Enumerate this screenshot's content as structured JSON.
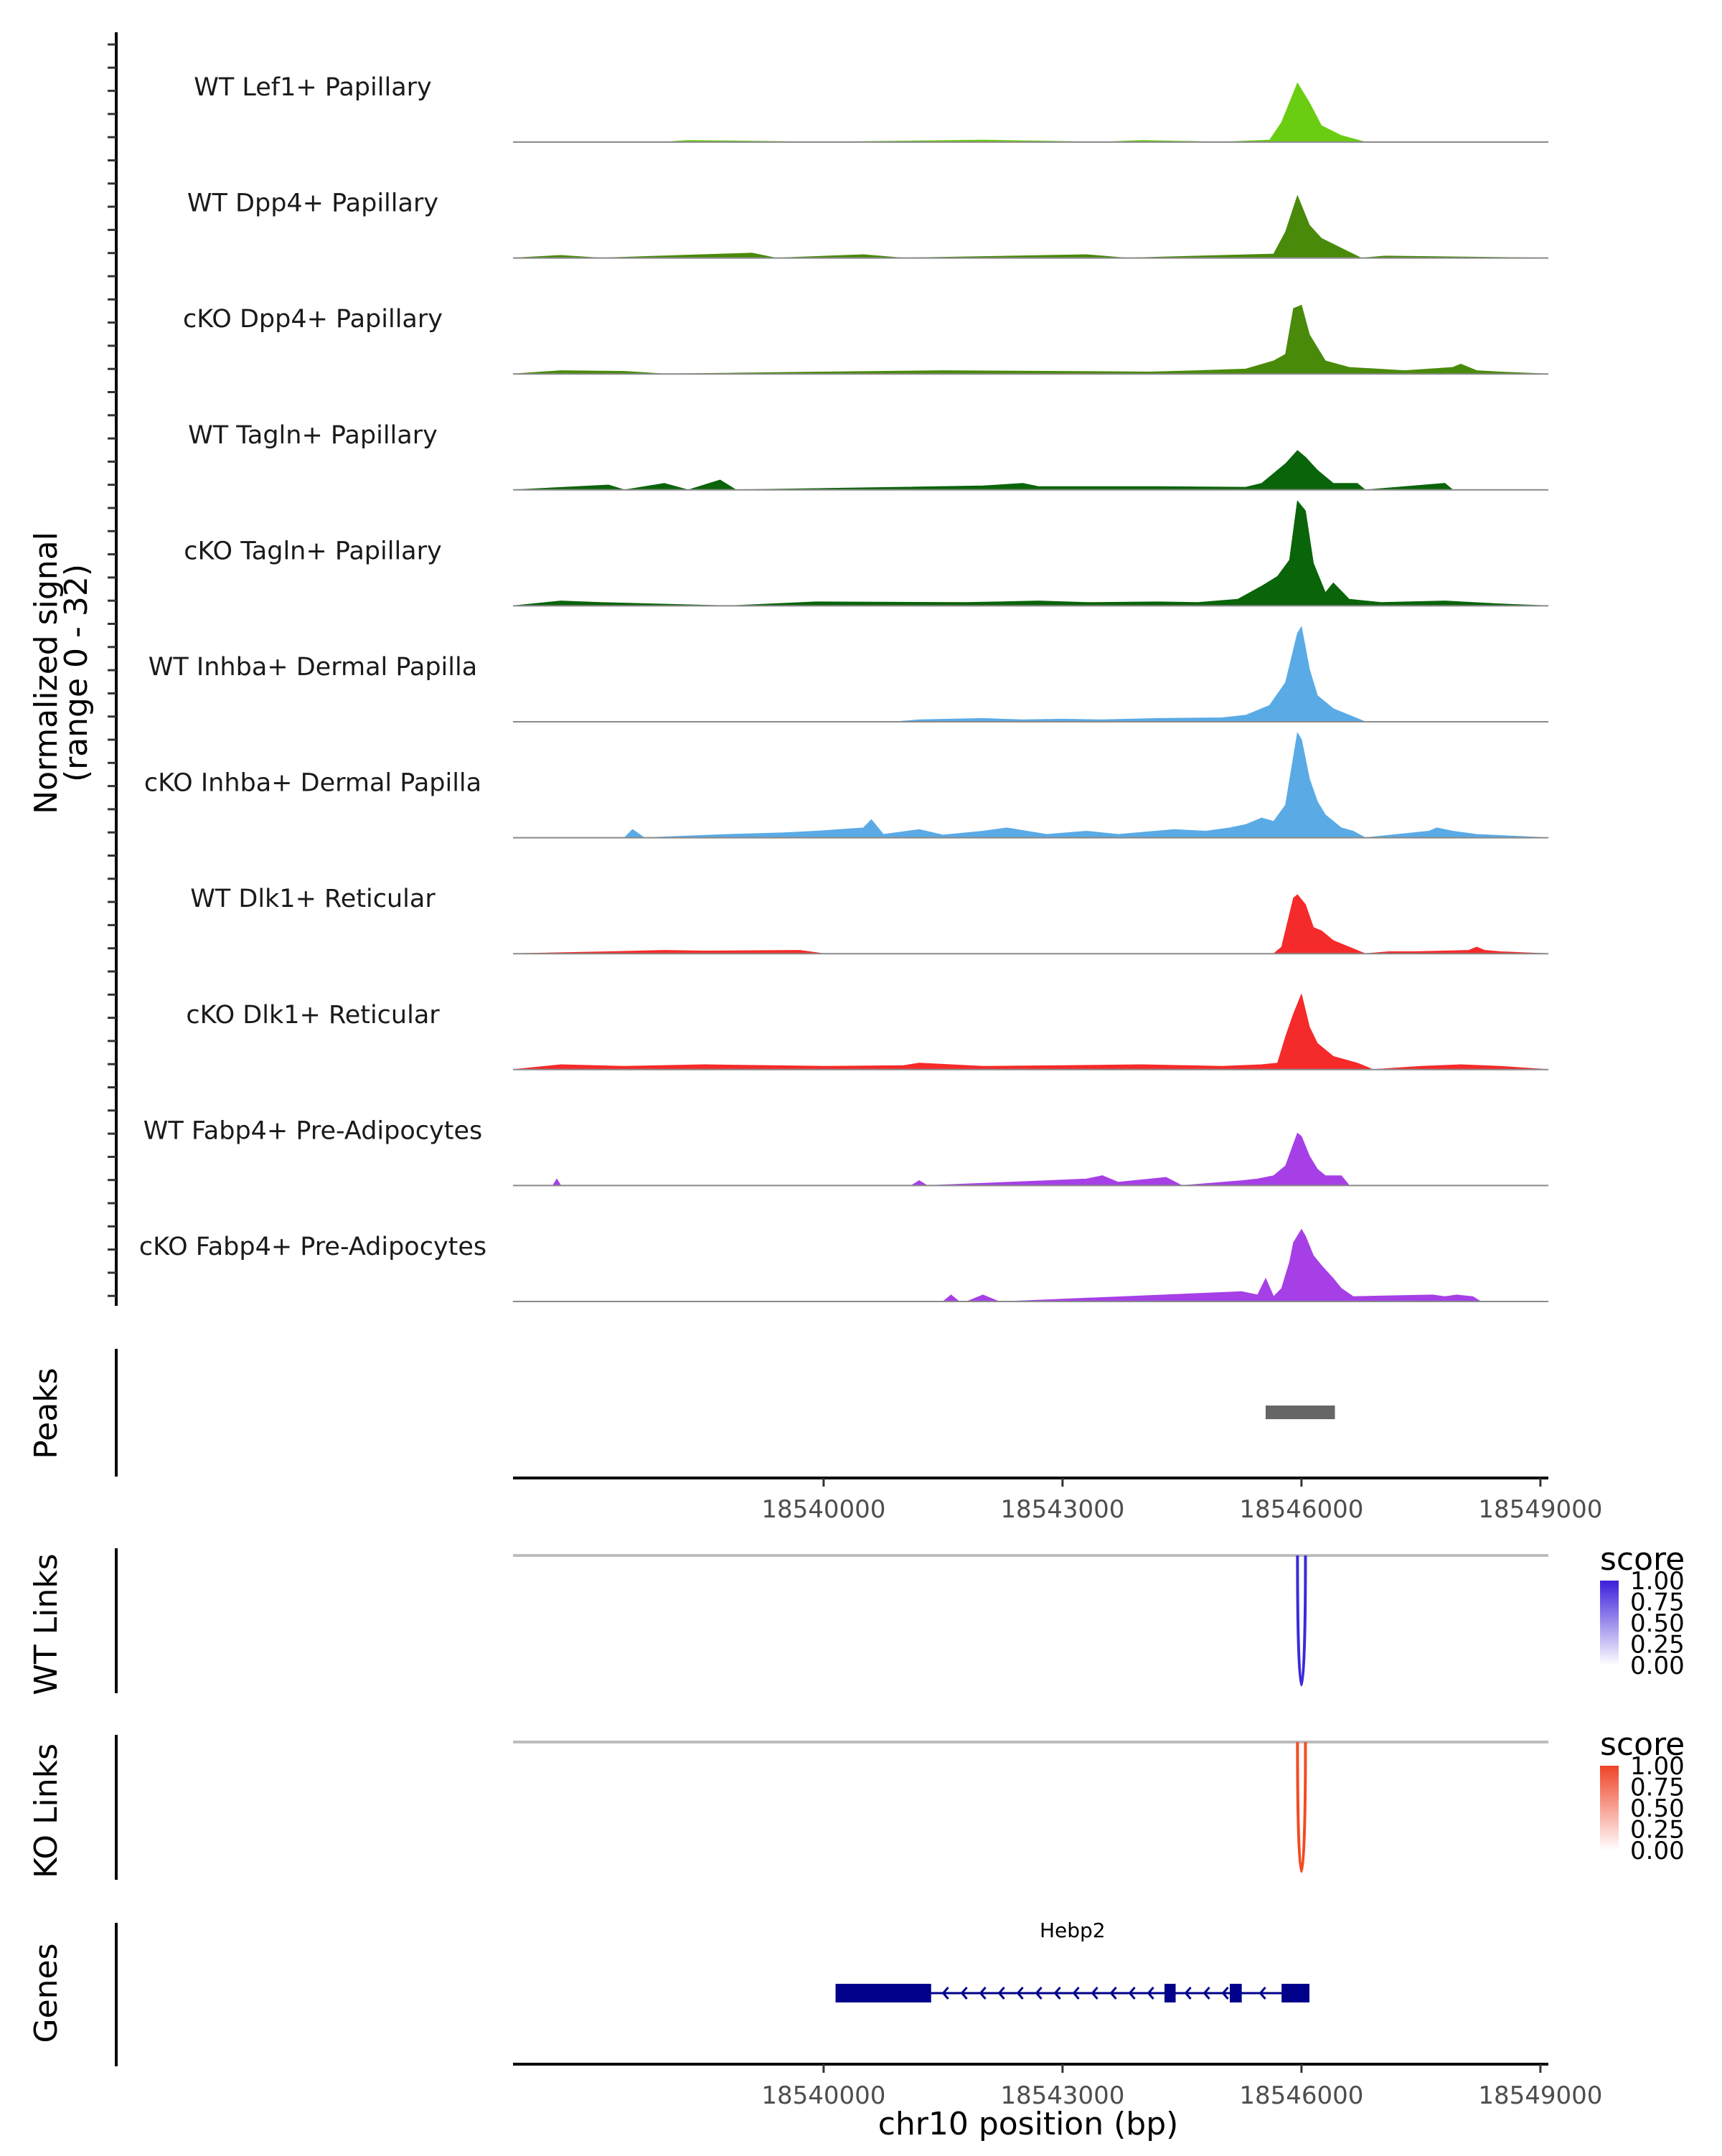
{
  "chart_data": {
    "type": "area",
    "title": "",
    "xlabel": "chr10 position (bp)",
    "ylabel": "Normalized signal",
    "ylabel_range": "(range 0 - 32)",
    "xlim": [
      18536100,
      18549100
    ],
    "ylim": [
      0,
      32
    ],
    "x_ticks": [
      18540000,
      18543000,
      18546000,
      18549000
    ],
    "tracks": [
      {
        "name": "WT Lef1+ Papillary",
        "color": "#6acd12",
        "x": [
          18536100,
          18538000,
          18538300,
          18540000,
          18542000,
          18543500,
          18544000,
          18545000,
          18545600,
          18545750,
          18545900,
          18545950,
          18546000,
          18546100,
          18546250,
          18546500,
          18546800,
          18549100
        ],
        "y": [
          0,
          0,
          0.5,
          0,
          0.6,
          0,
          0.5,
          0,
          0.6,
          6,
          15,
          18,
          16,
          12,
          5,
          2,
          0,
          0
        ]
      },
      {
        "name": "WT Dpp4+ Papillary",
        "color": "#4a8a0a",
        "x": [
          18536100,
          18536700,
          18537200,
          18539100,
          18539400,
          18540500,
          18541000,
          18543300,
          18543800,
          18545650,
          18545800,
          18545950,
          18546000,
          18546100,
          18546250,
          18546500,
          18546750,
          18547050,
          18549100
        ],
        "y": [
          0,
          0.8,
          0,
          1.5,
          0,
          1,
          0,
          1,
          0,
          1.2,
          8,
          19,
          16,
          10,
          6,
          3,
          0,
          0.6,
          0
        ]
      },
      {
        "name": "cKO Dpp4+ Papillary",
        "color": "#4a8a0a",
        "x": [
          18536100,
          18536700,
          18537500,
          18538000,
          18540000,
          18541500,
          18543000,
          18544100,
          18544700,
          18545300,
          18545650,
          18545800,
          18545900,
          18546000,
          18546100,
          18546300,
          18546600,
          18547300,
          18547900,
          18548000,
          18548200,
          18548500,
          18549100
        ],
        "y": [
          0,
          1,
          0.8,
          0,
          0.6,
          1,
          0.8,
          0.6,
          1,
          1.5,
          4,
          6,
          20,
          21,
          12,
          4,
          2,
          1,
          2,
          3,
          1,
          0.6,
          0
        ]
      },
      {
        "name": "WT Tagln+ Papillary",
        "color": "#0a640a",
        "x": [
          18536100,
          18537300,
          18537500,
          18538000,
          18538300,
          18538700,
          18538900,
          18542000,
          18542500,
          18542700,
          18544200,
          18545300,
          18545500,
          18545800,
          18545950,
          18546050,
          18546200,
          18546400,
          18546700,
          18546800,
          18547800,
          18547900,
          18549100
        ],
        "y": [
          0,
          1.5,
          0,
          2,
          0,
          3,
          0,
          1.2,
          2,
          1,
          1,
          0.8,
          2,
          8,
          12,
          10,
          6,
          2,
          2,
          0,
          2,
          0,
          0
        ]
      },
      {
        "name": "cKO Tagln+ Papillary",
        "color": "#0a640a",
        "x": [
          18536100,
          18536700,
          18537200,
          18538800,
          18539900,
          18541800,
          18542700,
          18543300,
          18544200,
          18544700,
          18545200,
          18545500,
          18545700,
          18545850,
          18545950,
          18546050,
          18546150,
          18546300,
          18546400,
          18546600,
          18547000,
          18547800,
          18548500,
          18549100
        ],
        "y": [
          0,
          1.5,
          1,
          0,
          1.2,
          1,
          1.5,
          1,
          1.2,
          1,
          2,
          6,
          9,
          14,
          32,
          29,
          13,
          4,
          7,
          2,
          1,
          1.5,
          0.6,
          0
        ]
      },
      {
        "name": "WT Inhba+ Dermal Papilla",
        "color": "#5aaae6",
        "x": [
          18536100,
          18540900,
          18541200,
          18542000,
          18542500,
          18543000,
          18543500,
          18544200,
          18545000,
          18545300,
          18545600,
          18545800,
          18545950,
          18546000,
          18546100,
          18546200,
          18546400,
          18546600,
          18546800,
          18549100
        ],
        "y": [
          0,
          0,
          0.6,
          1,
          0.6,
          0.8,
          0.6,
          1,
          1.2,
          2,
          5,
          12,
          27,
          29,
          16,
          8,
          4,
          2,
          0,
          0
        ]
      },
      {
        "name": "cKO Inhba+ Dermal Papilla",
        "color": "#5aaae6",
        "x": [
          18536100,
          18537500,
          18537600,
          18537750,
          18538800,
          18539500,
          18539900,
          18540500,
          18540600,
          18540750,
          18541200,
          18541500,
          18542000,
          18542300,
          18542800,
          18543300,
          18543700,
          18544400,
          18544800,
          18545100,
          18545300,
          18545500,
          18545650,
          18545800,
          18545950,
          18546000,
          18546100,
          18546200,
          18546300,
          18546500,
          18546650,
          18546800,
          18547600,
          18547700,
          18547900,
          18548200,
          18549100
        ],
        "y": [
          0,
          0,
          2.5,
          0,
          1,
          1.5,
          2,
          3,
          5.5,
          1,
          2.5,
          0.8,
          2,
          3,
          1,
          2,
          1,
          2.5,
          2,
          3,
          4,
          6,
          5,
          10,
          32,
          30,
          18,
          11,
          7,
          3,
          2,
          0,
          2,
          3,
          2,
          1,
          0
        ]
      },
      {
        "name": "WT Dlk1+ Reticular",
        "color": "#f52a2a",
        "x": [
          18536100,
          18537300,
          18538000,
          18538500,
          18539700,
          18540000,
          18545650,
          18545750,
          18545900,
          18545950,
          18546050,
          18546150,
          18546250,
          18546400,
          18546600,
          18546800,
          18547100,
          18547400,
          18548100,
          18548200,
          18548300,
          18548500,
          18549100
        ],
        "y": [
          0,
          0.6,
          1,
          0.8,
          1,
          0,
          0,
          2,
          17,
          18,
          15,
          8,
          7,
          4,
          2,
          0,
          0.6,
          0.6,
          1,
          2,
          1,
          0.6,
          0
        ]
      },
      {
        "name": "cKO Dlk1+ Reticular",
        "color": "#f52a2a",
        "x": [
          18536100,
          18536700,
          18537500,
          18538500,
          18540000,
          18541000,
          18541200,
          18542000,
          18543000,
          18544000,
          18545000,
          18545500,
          18545700,
          18545800,
          18545900,
          18546000,
          18546100,
          18546200,
          18546400,
          18546700,
          18546900,
          18547500,
          18548000,
          18548500,
          18549100
        ],
        "y": [
          0,
          1.5,
          1,
          1.5,
          1,
          1.2,
          2,
          1,
          1.2,
          1.5,
          1,
          1.5,
          2,
          10,
          17,
          23,
          13,
          8,
          4,
          2,
          0,
          1,
          1.5,
          1,
          0
        ]
      },
      {
        "name": "WT Fabp4+ Pre-Adipocytes",
        "color": "#a640e6",
        "x": [
          18536100,
          18536600,
          18536650,
          18536700,
          18541100,
          18541200,
          18541300,
          18542800,
          18543300,
          18543500,
          18543700,
          18544300,
          18544500,
          18545250,
          18545450,
          18545650,
          18545800,
          18545950,
          18546000,
          18546100,
          18546200,
          18546300,
          18546500,
          18546600,
          18549100
        ],
        "y": [
          0,
          0,
          2,
          0,
          0,
          1.5,
          0,
          1.5,
          2,
          3,
          1,
          2.5,
          0,
          1.5,
          2,
          3,
          6,
          16,
          15,
          9,
          5,
          3,
          3,
          0,
          0
        ]
      },
      {
        "name": "cKO Fabp4+ Pre-Adipocytes",
        "color": "#a640e6",
        "x": [
          18536100,
          18541500,
          18541600,
          18541700,
          18541800,
          18542000,
          18542200,
          18542300,
          18545250,
          18545350,
          18545450,
          18545550,
          18545650,
          18545750,
          18545850,
          18545900,
          18546000,
          18546050,
          18546150,
          18546250,
          18546400,
          18546500,
          18546650,
          18547650,
          18547800,
          18547950,
          18548150,
          18548250,
          18549100
        ],
        "y": [
          0,
          0,
          2,
          0,
          0,
          2,
          0,
          0,
          3,
          2.5,
          2,
          7,
          1.5,
          4,
          12,
          18,
          22,
          20,
          14,
          11,
          7,
          4,
          1.5,
          2,
          1.5,
          2,
          1.5,
          0,
          0
        ]
      }
    ],
    "peaks": {
      "label": "Peaks",
      "regions": [
        {
          "start": 18545550,
          "end": 18546420
        }
      ]
    },
    "links": [
      {
        "label": "WT Links",
        "color": "#3b2adb",
        "start": 18545950,
        "end": 18546050,
        "score": 1.0
      },
      {
        "label": "KO Links",
        "color": "#f54a22",
        "start": 18545950,
        "end": 18546050,
        "score": 1.0
      }
    ],
    "legends": [
      {
        "title": "score",
        "low_color": "#ffffff",
        "high_color": "#3b1fdb",
        "ticks": [
          "1.00",
          "0.75",
          "0.50",
          "0.25",
          "0.00"
        ]
      },
      {
        "title": "score",
        "low_color": "#ffffff",
        "high_color": "#f04428",
        "ticks": [
          "1.00",
          "0.75",
          "0.50",
          "0.25",
          "0.00"
        ]
      }
    ],
    "genes": {
      "label": "Genes",
      "color": "#00008b",
      "items": [
        {
          "name": "Hebp2",
          "start": 18540150,
          "end": 18546100,
          "strand": "-",
          "exons": [
            [
              18540150,
              18541350
            ],
            [
              18544280,
              18544420
            ],
            [
              18545100,
              18545250
            ],
            [
              18545750,
              18546100
            ]
          ]
        }
      ]
    }
  }
}
